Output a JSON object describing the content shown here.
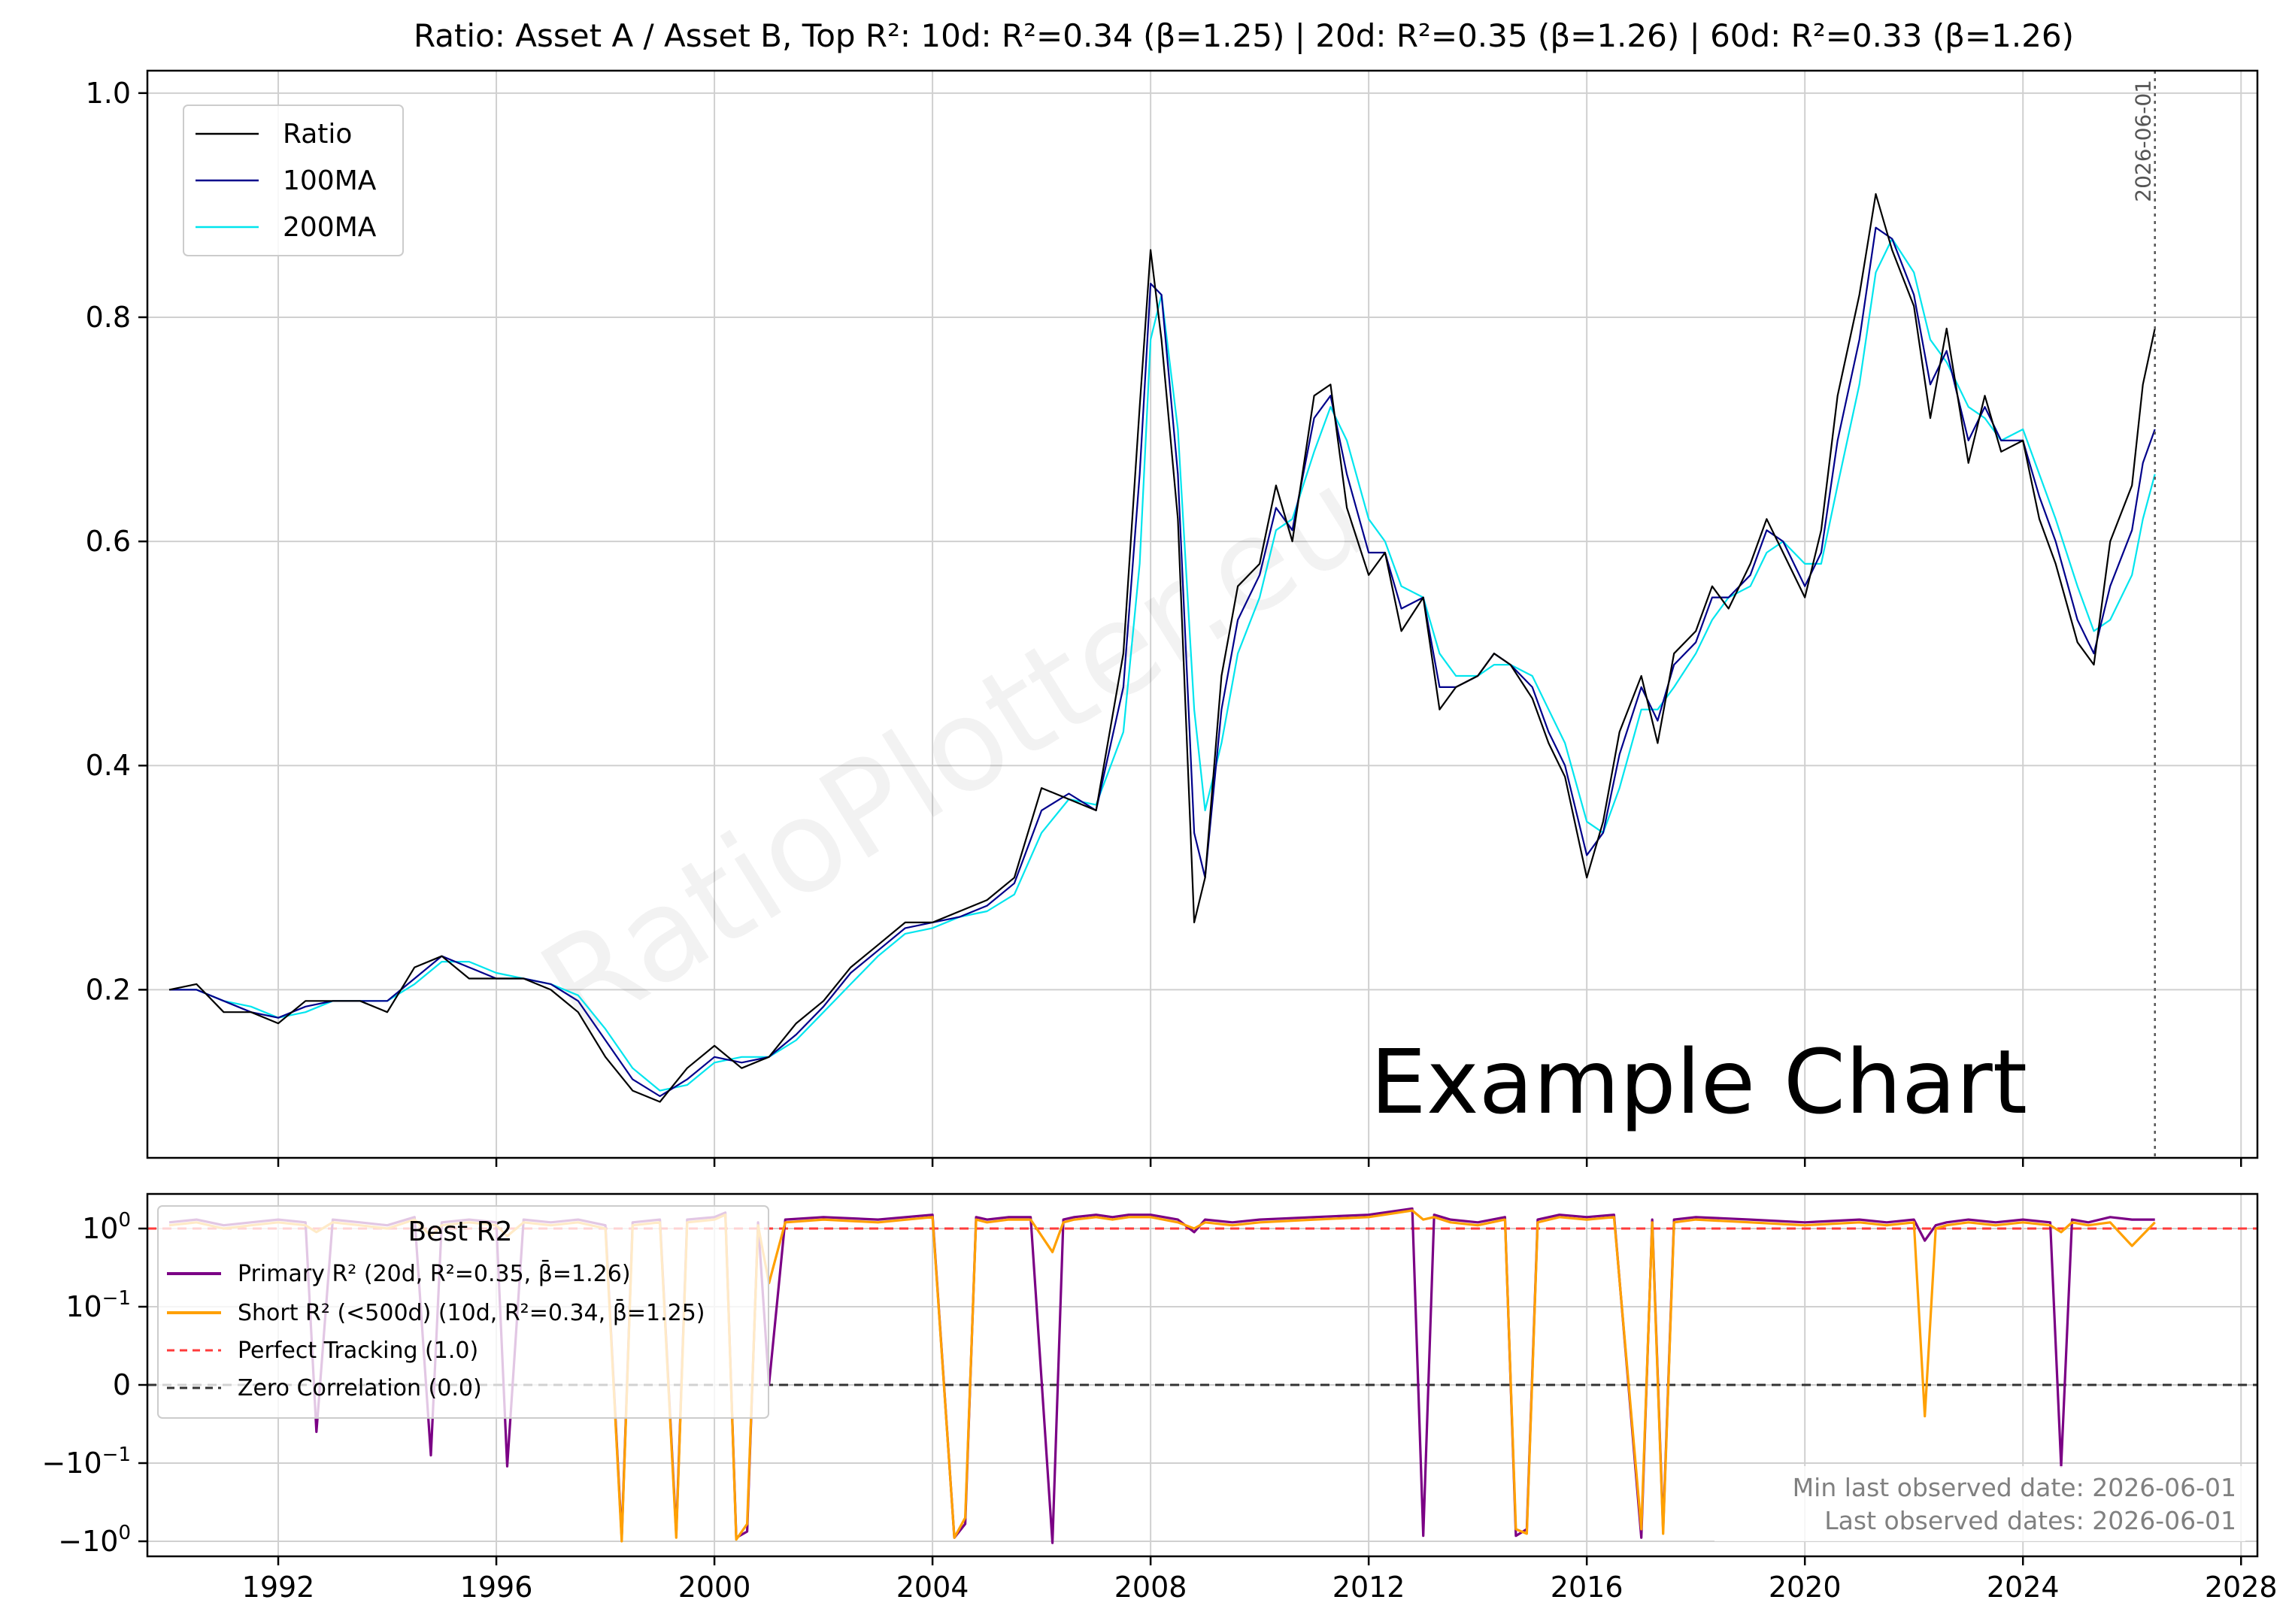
{
  "chart_data": [
    {
      "type": "line",
      "title": "Ratio: Asset A / Asset B, Top R²: 10d: R²=0.34 (β=1.25) | 20d: R²=0.35 (β=1.26) | 60d: R²=0.33 (β=1.26)",
      "xlabel": "",
      "ylabel": "",
      "xlim": [
        1989.6,
        2028.3
      ],
      "ylim": [
        0.05,
        1.02
      ],
      "y_ticks": [
        "0.2",
        "0.4",
        "0.6",
        "0.8",
        "1.0"
      ],
      "y_tick_values": [
        0.2,
        0.4,
        0.6,
        0.8,
        1.0
      ],
      "grid": true,
      "legend_position": "top-left",
      "annotation_text": "Example Chart",
      "watermark": "RatioPlotter.eu",
      "vline": {
        "x": 2026.42,
        "label": "2026-06-01"
      },
      "x_points": [
        1990.0,
        1990.5,
        1991.0,
        1991.5,
        1992.0,
        1992.5,
        1993.0,
        1993.5,
        1994.0,
        1994.5,
        1995.0,
        1995.5,
        1996.0,
        1996.5,
        1997.0,
        1997.5,
        1998.0,
        1998.5,
        1999.0,
        1999.5,
        2000.0,
        2000.5,
        2001.0,
        2001.5,
        2002.0,
        2002.5,
        2003.0,
        2003.5,
        2004.0,
        2004.5,
        2005.0,
        2005.5,
        2006.0,
        2006.5,
        2007.0,
        2007.5,
        2007.8,
        2008.0,
        2008.2,
        2008.5,
        2008.8,
        2009.0,
        2009.3,
        2009.6,
        2010.0,
        2010.3,
        2010.6,
        2011.0,
        2011.3,
        2011.6,
        2012.0,
        2012.3,
        2012.6,
        2013.0,
        2013.3,
        2013.6,
        2014.0,
        2014.3,
        2014.6,
        2015.0,
        2015.3,
        2015.6,
        2016.0,
        2016.3,
        2016.6,
        2017.0,
        2017.3,
        2017.6,
        2018.0,
        2018.3,
        2018.6,
        2019.0,
        2019.3,
        2019.6,
        2020.0,
        2020.3,
        2020.6,
        2021.0,
        2021.3,
        2021.6,
        2022.0,
        2022.3,
        2022.6,
        2023.0,
        2023.3,
        2023.6,
        2024.0,
        2024.3,
        2024.6,
        2025.0,
        2025.3,
        2025.6,
        2026.0,
        2026.2,
        2026.42
      ],
      "series": [
        {
          "name": "Ratio",
          "color": "#000000",
          "y": [
            0.2,
            0.205,
            0.18,
            0.18,
            0.17,
            0.19,
            0.19,
            0.19,
            0.18,
            0.22,
            0.23,
            0.21,
            0.21,
            0.21,
            0.2,
            0.18,
            0.14,
            0.11,
            0.1,
            0.13,
            0.15,
            0.13,
            0.14,
            0.17,
            0.19,
            0.22,
            0.24,
            0.26,
            0.26,
            0.27,
            0.28,
            0.3,
            0.38,
            0.37,
            0.36,
            0.5,
            0.72,
            0.86,
            0.78,
            0.62,
            0.26,
            0.3,
            0.48,
            0.56,
            0.58,
            0.65,
            0.6,
            0.73,
            0.74,
            0.63,
            0.57,
            0.59,
            0.52,
            0.55,
            0.45,
            0.47,
            0.48,
            0.5,
            0.49,
            0.46,
            0.42,
            0.39,
            0.3,
            0.35,
            0.43,
            0.48,
            0.42,
            0.5,
            0.52,
            0.56,
            0.54,
            0.58,
            0.62,
            0.59,
            0.55,
            0.61,
            0.73,
            0.82,
            0.91,
            0.86,
            0.81,
            0.71,
            0.79,
            0.67,
            0.73,
            0.68,
            0.69,
            0.62,
            0.58,
            0.51,
            0.49,
            0.6,
            0.65,
            0.74,
            0.79
          ]
        },
        {
          "name": "100MA",
          "color": "#00008b",
          "y": [
            0.2,
            0.2,
            0.19,
            0.18,
            0.175,
            0.185,
            0.19,
            0.19,
            0.19,
            0.21,
            0.23,
            0.22,
            0.21,
            0.21,
            0.205,
            0.19,
            0.155,
            0.12,
            0.105,
            0.12,
            0.14,
            0.135,
            0.14,
            0.16,
            0.185,
            0.215,
            0.235,
            0.255,
            0.26,
            0.265,
            0.275,
            0.295,
            0.36,
            0.375,
            0.36,
            0.47,
            0.66,
            0.83,
            0.82,
            0.66,
            0.34,
            0.3,
            0.45,
            0.53,
            0.57,
            0.63,
            0.61,
            0.71,
            0.73,
            0.66,
            0.59,
            0.59,
            0.54,
            0.55,
            0.47,
            0.47,
            0.48,
            0.5,
            0.49,
            0.47,
            0.43,
            0.4,
            0.32,
            0.34,
            0.41,
            0.47,
            0.44,
            0.49,
            0.51,
            0.55,
            0.55,
            0.57,
            0.61,
            0.6,
            0.56,
            0.59,
            0.69,
            0.78,
            0.88,
            0.87,
            0.82,
            0.74,
            0.77,
            0.69,
            0.72,
            0.69,
            0.69,
            0.64,
            0.6,
            0.53,
            0.5,
            0.56,
            0.61,
            0.67,
            0.7
          ]
        },
        {
          "name": "200MA",
          "color": "#00e5ee",
          "y": [
            0.2,
            0.2,
            0.19,
            0.185,
            0.175,
            0.18,
            0.19,
            0.19,
            0.19,
            0.205,
            0.225,
            0.225,
            0.215,
            0.21,
            0.205,
            0.195,
            0.165,
            0.13,
            0.11,
            0.115,
            0.135,
            0.14,
            0.14,
            0.155,
            0.18,
            0.205,
            0.23,
            0.25,
            0.255,
            0.265,
            0.27,
            0.285,
            0.34,
            0.37,
            0.365,
            0.43,
            0.58,
            0.78,
            0.82,
            0.7,
            0.45,
            0.36,
            0.42,
            0.5,
            0.55,
            0.61,
            0.62,
            0.68,
            0.72,
            0.69,
            0.62,
            0.6,
            0.56,
            0.55,
            0.5,
            0.48,
            0.48,
            0.49,
            0.49,
            0.48,
            0.45,
            0.42,
            0.35,
            0.34,
            0.38,
            0.45,
            0.45,
            0.47,
            0.5,
            0.53,
            0.55,
            0.56,
            0.59,
            0.6,
            0.58,
            0.58,
            0.65,
            0.74,
            0.84,
            0.87,
            0.84,
            0.78,
            0.76,
            0.72,
            0.71,
            0.69,
            0.7,
            0.66,
            0.62,
            0.56,
            0.52,
            0.53,
            0.57,
            0.62,
            0.66
          ]
        }
      ]
    },
    {
      "type": "line",
      "title": "",
      "xlabel": "",
      "ylabel": "",
      "xlim": [
        1989.6,
        2028.3
      ],
      "y_scale": "symlog",
      "y_ticks": [
        "10^0",
        "10^-1",
        "0",
        "-10^-1",
        "-10^0"
      ],
      "y_tick_values": [
        1,
        0.1,
        0,
        -0.1,
        -1
      ],
      "x_ticks": [
        "1992",
        "1996",
        "2000",
        "2004",
        "2008",
        "2012",
        "2016",
        "2020",
        "2024",
        "2028"
      ],
      "x_tick_values": [
        1992,
        1996,
        2000,
        2004,
        2008,
        2012,
        2016,
        2020,
        2024,
        2028
      ],
      "grid": true,
      "legend_title": "Best R2",
      "legend_position": "top-left",
      "notes": [
        "Min last observed date: 2026-06-01",
        "Last observed dates: 2026-06-01"
      ],
      "hlines": [
        {
          "name": "Perfect Tracking (1.0)",
          "y": 1,
          "color": "#ff3b3b"
        },
        {
          "name": "Zero Correlation (0.0)",
          "y": 0,
          "color": "#333333"
        }
      ],
      "x_points": [
        1990.0,
        1990.5,
        1991.0,
        1991.5,
        1992.0,
        1992.5,
        1992.7,
        1993.0,
        1993.5,
        1994.0,
        1994.5,
        1994.8,
        1995.0,
        1995.5,
        1996.0,
        1996.2,
        1996.5,
        1997.0,
        1997.5,
        1998.0,
        1998.3,
        1998.5,
        1999.0,
        1999.3,
        1999.5,
        2000.0,
        2000.2,
        2000.4,
        2000.6,
        2000.8,
        2001.0,
        2001.3,
        2002.0,
        2003.0,
        2004.0,
        2004.4,
        2004.6,
        2004.8,
        2005.0,
        2005.4,
        2005.8,
        2006.2,
        2006.4,
        2006.6,
        2007.0,
        2007.3,
        2007.6,
        2008.0,
        2008.5,
        2008.8,
        2009.0,
        2009.5,
        2010.0,
        2011.0,
        2012.0,
        2012.8,
        2013.0,
        2013.2,
        2013.5,
        2014.0,
        2014.5,
        2014.7,
        2014.9,
        2015.1,
        2015.5,
        2016.0,
        2016.5,
        2017.0,
        2017.2,
        2017.4,
        2017.6,
        2018.0,
        2019.0,
        2020.0,
        2021.0,
        2021.5,
        2022.0,
        2022.2,
        2022.4,
        2022.6,
        2023.0,
        2023.5,
        2024.0,
        2024.5,
        2024.7,
        2024.9,
        2025.2,
        2025.6,
        2026.0,
        2026.42
      ],
      "series": [
        {
          "name": "Primary R² (20d, R²=0.35, β̄=1.26)",
          "color": "#7b0085",
          "y": [
            1.2,
            1.3,
            1.1,
            1.2,
            1.3,
            1.2,
            -0.06,
            1.3,
            1.2,
            1.1,
            1.4,
            -0.09,
            1.2,
            1.3,
            1.2,
            -0.11,
            1.3,
            1.2,
            1.3,
            1.1,
            -0.9,
            1.2,
            1.3,
            -0.8,
            1.3,
            1.4,
            1.6,
            -0.9,
            -0.75,
            1.2,
            0.0,
            1.3,
            1.4,
            1.3,
            1.5,
            -0.9,
            -0.6,
            1.4,
            1.3,
            1.4,
            1.4,
            -1.05,
            1.3,
            1.4,
            1.5,
            1.4,
            1.5,
            1.5,
            1.3,
            0.9,
            1.3,
            1.2,
            1.3,
            1.4,
            1.5,
            1.8,
            -0.85,
            1.5,
            1.3,
            1.2,
            1.4,
            -0.85,
            -0.7,
            1.3,
            1.5,
            1.4,
            1.5,
            -0.9,
            1.3,
            -0.7,
            1.3,
            1.4,
            1.3,
            1.2,
            1.3,
            1.2,
            1.3,
            0.7,
            1.1,
            1.2,
            1.3,
            1.2,
            1.3,
            1.2,
            -0.11,
            1.3,
            1.2,
            1.4,
            1.3,
            1.3
          ]
        },
        {
          "name": "Short R² (<500d) (10d, R²=0.34, β̄=1.25)",
          "color": "#ffa000",
          "y": [
            1.1,
            1.2,
            1.0,
            1.1,
            1.2,
            1.1,
            0.9,
            1.2,
            1.1,
            1.0,
            1.3,
            0.8,
            1.1,
            1.2,
            1.1,
            0.8,
            1.2,
            1.1,
            1.2,
            1.0,
            -1.0,
            1.1,
            1.2,
            -0.9,
            1.2,
            1.3,
            1.5,
            -0.95,
            -0.6,
            1.1,
            0.2,
            1.2,
            1.3,
            1.2,
            1.4,
            -0.9,
            -0.5,
            1.3,
            1.2,
            1.3,
            1.3,
            0.5,
            1.2,
            1.3,
            1.4,
            1.3,
            1.4,
            1.4,
            1.2,
            1.0,
            1.2,
            1.1,
            1.2,
            1.3,
            1.4,
            1.7,
            1.3,
            1.4,
            1.2,
            1.1,
            1.3,
            -0.7,
            -0.8,
            1.2,
            1.4,
            1.3,
            1.4,
            -0.7,
            1.2,
            -0.8,
            1.2,
            1.3,
            1.2,
            1.1,
            1.2,
            1.1,
            1.2,
            -0.04,
            1.0,
            1.1,
            1.2,
            1.1,
            1.2,
            1.1,
            0.9,
            1.2,
            1.1,
            1.2,
            0.6,
            1.2
          ]
        }
      ]
    }
  ]
}
